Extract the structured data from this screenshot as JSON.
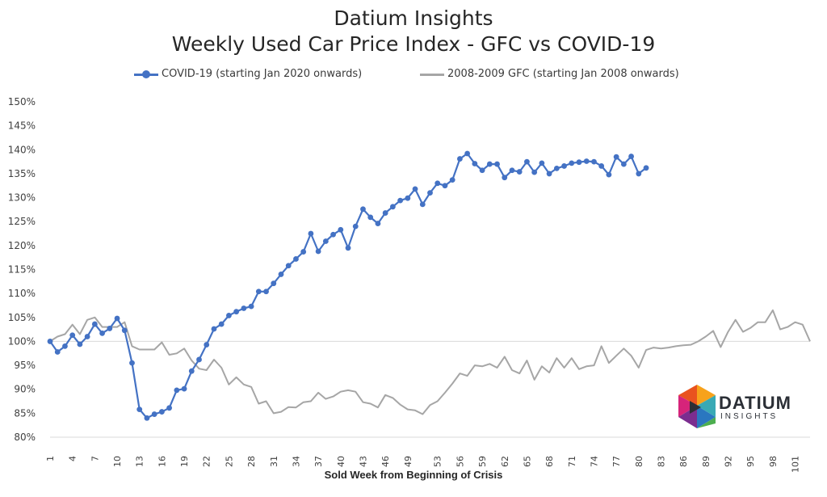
{
  "chart_data": {
    "type": "line",
    "title": "Datium Insights",
    "subtitle": "Weekly Used Car Price Index - GFC vs COVID-19",
    "xlabel": "Sold Week from Beginning of Crisis",
    "ylabel": "",
    "ylim": [
      0.8,
      1.5
    ],
    "xlim": [
      1,
      103
    ],
    "y_ticks": [
      "80%",
      "85%",
      "90%",
      "95%",
      "100%",
      "105%",
      "110%",
      "115%",
      "120%",
      "125%",
      "130%",
      "135%",
      "140%",
      "145%",
      "150%"
    ],
    "x_ticks": [
      "1",
      "4",
      "7",
      "10",
      "13",
      "16",
      "19",
      "22",
      "25",
      "28",
      "31",
      "34",
      "37",
      "40",
      "43",
      "46",
      "49",
      "53",
      "56",
      "59",
      "62",
      "65",
      "68",
      "71",
      "74",
      "77",
      "80",
      "83",
      "86",
      "89",
      "92",
      "95",
      "98",
      "101"
    ],
    "grid": false,
    "legend_position": "top",
    "series": [
      {
        "name": "COVID-19 (starting Jan 2020 onwards)",
        "color": "#4472c4",
        "marker": "circle",
        "values": [
          1.0,
          0.978,
          0.99,
          1.013,
          0.994,
          1.01,
          1.036,
          1.017,
          1.027,
          1.048,
          1.023,
          0.955,
          0.858,
          0.84,
          0.848,
          0.853,
          0.861,
          0.898,
          0.901,
          0.938,
          0.962,
          0.993,
          1.026,
          1.036,
          1.054,
          1.062,
          1.069,
          1.073,
          1.104,
          1.104,
          1.121,
          1.14,
          1.158,
          1.172,
          1.187,
          1.225,
          1.188,
          1.209,
          1.223,
          1.233,
          1.195,
          1.24,
          1.276,
          1.259,
          1.246,
          1.268,
          1.281,
          1.294,
          1.299,
          1.318,
          1.286,
          1.31,
          1.33,
          1.325,
          1.337,
          1.381,
          1.392,
          1.371,
          1.357,
          1.37,
          1.37,
          1.342,
          1.357,
          1.354,
          1.375,
          1.353,
          1.372,
          1.35,
          1.361,
          1.366,
          1.372,
          1.374,
          1.376,
          1.375,
          1.366,
          1.348,
          1.385,
          1.37,
          1.386,
          1.35,
          1.362
        ]
      },
      {
        "name": "2008-2009 GFC (starting Jan 2008 onwards)",
        "color": "#a6a6a6",
        "marker": "none",
        "values": [
          1.0,
          1.01,
          1.015,
          1.035,
          1.015,
          1.045,
          1.05,
          1.03,
          1.03,
          1.03,
          1.04,
          0.99,
          0.983,
          0.983,
          0.983,
          0.998,
          0.972,
          0.975,
          0.985,
          0.96,
          0.943,
          0.94,
          0.962,
          0.945,
          0.91,
          0.925,
          0.91,
          0.905,
          0.87,
          0.875,
          0.85,
          0.853,
          0.863,
          0.862,
          0.873,
          0.875,
          0.893,
          0.88,
          0.885,
          0.895,
          0.898,
          0.895,
          0.873,
          0.87,
          0.862,
          0.888,
          0.882,
          0.868,
          0.858,
          0.856,
          0.848,
          0.867,
          0.875,
          0.893,
          0.912,
          0.933,
          0.928,
          0.95,
          0.948,
          0.953,
          0.945,
          0.968,
          0.94,
          0.933,
          0.96,
          0.92,
          0.948,
          0.935,
          0.965,
          0.945,
          0.965,
          0.942,
          0.948,
          0.95,
          0.99,
          0.955,
          0.97,
          0.985,
          0.97,
          0.945,
          0.982,
          0.987,
          0.985,
          0.987,
          0.99,
          0.992,
          0.993,
          1.0,
          1.01,
          1.022,
          0.988,
          1.02,
          1.045,
          1.02,
          1.028,
          1.04,
          1.04,
          1.065,
          1.025,
          1.03,
          1.04,
          1.035,
          1.0
        ]
      }
    ],
    "reference_line": 1.0
  },
  "logo": {
    "word": "DATIUM",
    "sub": "INSIGHTS"
  }
}
